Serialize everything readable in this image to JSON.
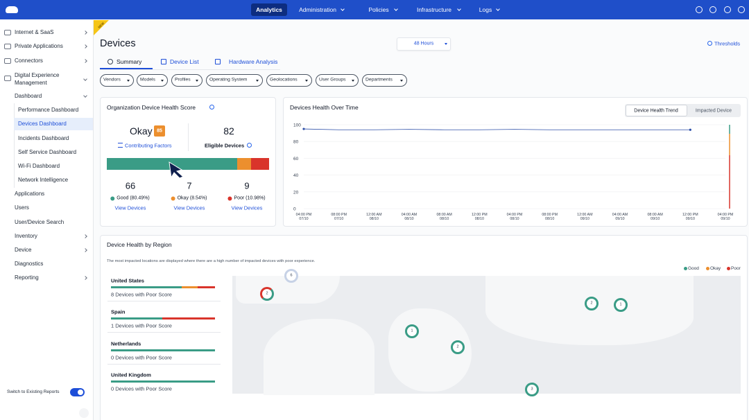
{
  "nav": {
    "items": [
      "Analytics",
      "Administration",
      "Policies",
      "Infrastructure",
      "Logs"
    ]
  },
  "sidebar": {
    "items": [
      "Internet & SaaS",
      "Private Applications",
      "Connectors"
    ],
    "section": {
      "label": "Digital Experience Management",
      "dashboard": {
        "label": "Dashboard",
        "children": [
          "Performance Dashboard",
          "Devices Dashboard",
          "Incidents Dashboard",
          "Self Service Dashboard",
          "Wi-Fi Dashboard",
          "Network Intelligence"
        ]
      },
      "items": [
        "Applications",
        "Users",
        "User/Device Search",
        "Inventory",
        "Device",
        "Diagnostics",
        "Reporting"
      ]
    },
    "switch_label": "Switch to Existing Reports"
  },
  "page": {
    "badge": "NEW",
    "title": "Devices",
    "time_range": "48 Hours",
    "thresholds": "Thresholds",
    "tabs": [
      "Summary",
      "Device List",
      "Hardware Analysis"
    ],
    "filters": [
      "Vendors",
      "Models",
      "Profiles",
      "Operating System",
      "Geolocations",
      "User Groups",
      "Departments"
    ]
  },
  "health_score": {
    "title": "Organization Device Health Score",
    "status": "Okay",
    "score": 85,
    "contributing_factors": "Contributing Factors",
    "eligible_count": 82,
    "eligible_label": "Eligible Devices",
    "breakdown": [
      {
        "count": 66,
        "label": "Good (80.49%)",
        "link": "View Devices",
        "color": "#3a9c86"
      },
      {
        "count": 7,
        "label": "Okay (8.54%)",
        "link": "View Devices",
        "color": "#ec8f2e"
      },
      {
        "count": 9,
        "label": "Poor (10.98%)",
        "link": "View Devices",
        "color": "#d9342b"
      }
    ]
  },
  "trend": {
    "title": "Devices Health Over Time",
    "toggles": [
      "Device Health Trend",
      "Impacted Device"
    ],
    "chart_data": {
      "type": "line",
      "categories": [
        [
          "04:00 PM",
          "07/10"
        ],
        [
          "08:00 PM",
          "07/10"
        ],
        [
          "12:00 AM",
          "08/10"
        ],
        [
          "04:00 AM",
          "08/10"
        ],
        [
          "08:00 AM",
          "08/10"
        ],
        [
          "12:00 PM",
          "08/10"
        ],
        [
          "04:00 PM",
          "08/10"
        ],
        [
          "08:00 PM",
          "08/10"
        ],
        [
          "12:00 AM",
          "09/10"
        ],
        [
          "04:00 AM",
          "09/10"
        ],
        [
          "08:00 AM",
          "09/10"
        ],
        [
          "12:00 PM",
          "09/10"
        ],
        [
          "04:00 PM",
          "09/10"
        ]
      ],
      "series": [
        {
          "color": "#2d4fa8",
          "values": [
            95,
            94,
            94,
            94.5,
            94,
            94,
            94.5,
            94,
            94,
            94,
            94,
            94,
            null
          ]
        }
      ],
      "ylim": [
        0,
        100
      ],
      "yticks": [
        0,
        20,
        40,
        60,
        80,
        100
      ]
    }
  },
  "region": {
    "title": "Device Health by Region",
    "note": "The most impacted locations are displayed where there are a high number of impacted devices with poor experience.",
    "legend": [
      {
        "name": "Good",
        "color": "#3a9c86"
      },
      {
        "name": "Okay",
        "color": "#ec8f2e"
      },
      {
        "name": "Poor",
        "color": "#d9342b"
      }
    ],
    "rows": [
      {
        "name": "United States",
        "detail": "8 Devices with Poor Score",
        "shares": [
          68,
          15,
          17
        ]
      },
      {
        "name": "Spain",
        "detail": "1 Devices with Poor Score",
        "shares": [
          49,
          0,
          51
        ]
      },
      {
        "name": "Netherlands",
        "detail": "0 Devices with Poor Score",
        "shares": [
          100,
          0,
          0
        ]
      },
      {
        "name": "United Kingdom",
        "detail": "0 Devices with Poor Score",
        "shares": [
          100,
          0,
          0
        ]
      }
    ],
    "clusters": [
      "6",
      "2",
      "2",
      "1",
      "1",
      "2",
      "3"
    ]
  }
}
